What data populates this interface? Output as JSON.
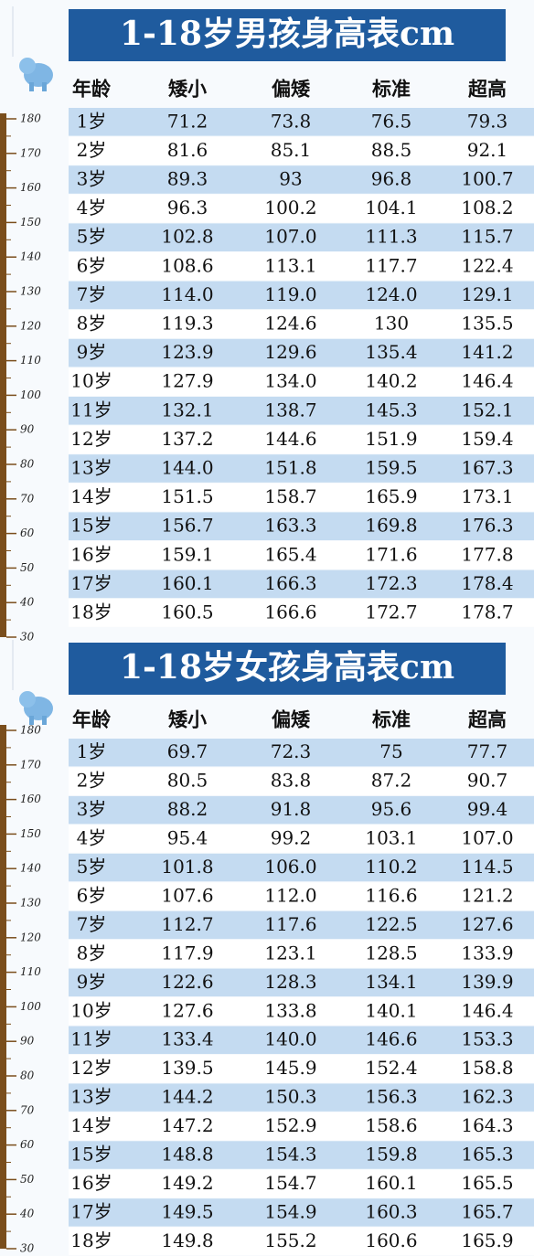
{
  "sections": [
    {
      "title": "1-18岁男孩身高表cm",
      "header": [
        "年龄",
        "矮小",
        "偏矮",
        "标准",
        "超高"
      ],
      "ruler": [
        "180",
        "170",
        "160",
        "150",
        "140",
        "130",
        "120",
        "110",
        "100",
        "90",
        "80",
        "70",
        "60",
        "50",
        "40",
        "30"
      ],
      "rows": [
        [
          "1岁",
          "71.2",
          "73.8",
          "76.5",
          "79.3"
        ],
        [
          "2岁",
          "81.6",
          "85.1",
          "88.5",
          "92.1"
        ],
        [
          "3岁",
          "89.3",
          "93",
          "96.8",
          "100.7"
        ],
        [
          "4岁",
          "96.3",
          "100.2",
          "104.1",
          "108.2"
        ],
        [
          "5岁",
          "102.8",
          "107.0",
          "111.3",
          "115.7"
        ],
        [
          "6岁",
          "108.6",
          "113.1",
          "117.7",
          "122.4"
        ],
        [
          "7岁",
          "114.0",
          "119.0",
          "124.0",
          "129.1"
        ],
        [
          "8岁",
          "119.3",
          "124.6",
          "130",
          "135.5"
        ],
        [
          "9岁",
          "123.9",
          "129.6",
          "135.4",
          "141.2"
        ],
        [
          "10岁",
          "127.9",
          "134.0",
          "140.2",
          "146.4"
        ],
        [
          "11岁",
          "132.1",
          "138.7",
          "145.3",
          "152.1"
        ],
        [
          "12岁",
          "137.2",
          "144.6",
          "151.9",
          "159.4"
        ],
        [
          "13岁",
          "144.0",
          "151.8",
          "159.5",
          "167.3"
        ],
        [
          "14岁",
          "151.5",
          "158.7",
          "165.9",
          "173.1"
        ],
        [
          "15岁",
          "156.7",
          "163.3",
          "169.8",
          "176.3"
        ],
        [
          "16岁",
          "159.1",
          "165.4",
          "171.6",
          "177.8"
        ],
        [
          "17岁",
          "160.1",
          "166.3",
          "172.3",
          "178.4"
        ],
        [
          "18岁",
          "160.5",
          "166.6",
          "172.7",
          "178.7"
        ]
      ]
    },
    {
      "title": "1-18岁女孩身高表cm",
      "header": [
        "年龄",
        "矮小",
        "偏矮",
        "标准",
        "超高"
      ],
      "ruler": [
        "180",
        "170",
        "160",
        "150",
        "140",
        "130",
        "120",
        "110",
        "100",
        "90",
        "80",
        "70",
        "60",
        "50",
        "40",
        "30"
      ],
      "rows": [
        [
          "1岁",
          "69.7",
          "72.3",
          "75",
          "77.7"
        ],
        [
          "2岁",
          "80.5",
          "83.8",
          "87.2",
          "90.7"
        ],
        [
          "3岁",
          "88.2",
          "91.8",
          "95.6",
          "99.4"
        ],
        [
          "4岁",
          "95.4",
          "99.2",
          "103.1",
          "107.0"
        ],
        [
          "5岁",
          "101.8",
          "106.0",
          "110.2",
          "114.5"
        ],
        [
          "6岁",
          "107.6",
          "112.0",
          "116.6",
          "121.2"
        ],
        [
          "7岁",
          "112.7",
          "117.6",
          "122.5",
          "127.6"
        ],
        [
          "8岁",
          "117.9",
          "123.1",
          "128.5",
          "133.9"
        ],
        [
          "9岁",
          "122.6",
          "128.3",
          "134.1",
          "139.9"
        ],
        [
          "10岁",
          "127.6",
          "133.8",
          "140.1",
          "146.4"
        ],
        [
          "11岁",
          "133.4",
          "140.0",
          "146.6",
          "153.3"
        ],
        [
          "12岁",
          "139.5",
          "145.9",
          "152.4",
          "158.8"
        ],
        [
          "13岁",
          "144.2",
          "150.3",
          "156.3",
          "162.3"
        ],
        [
          "14岁",
          "147.2",
          "152.9",
          "158.6",
          "164.3"
        ],
        [
          "15岁",
          "148.8",
          "154.3",
          "159.8",
          "165.3"
        ],
        [
          "16岁",
          "149.2",
          "154.7",
          "160.1",
          "165.5"
        ],
        [
          "17岁",
          "149.5",
          "154.9",
          "160.3",
          "165.7"
        ],
        [
          "18岁",
          "149.8",
          "155.2",
          "160.6",
          "165.9"
        ]
      ]
    }
  ]
}
